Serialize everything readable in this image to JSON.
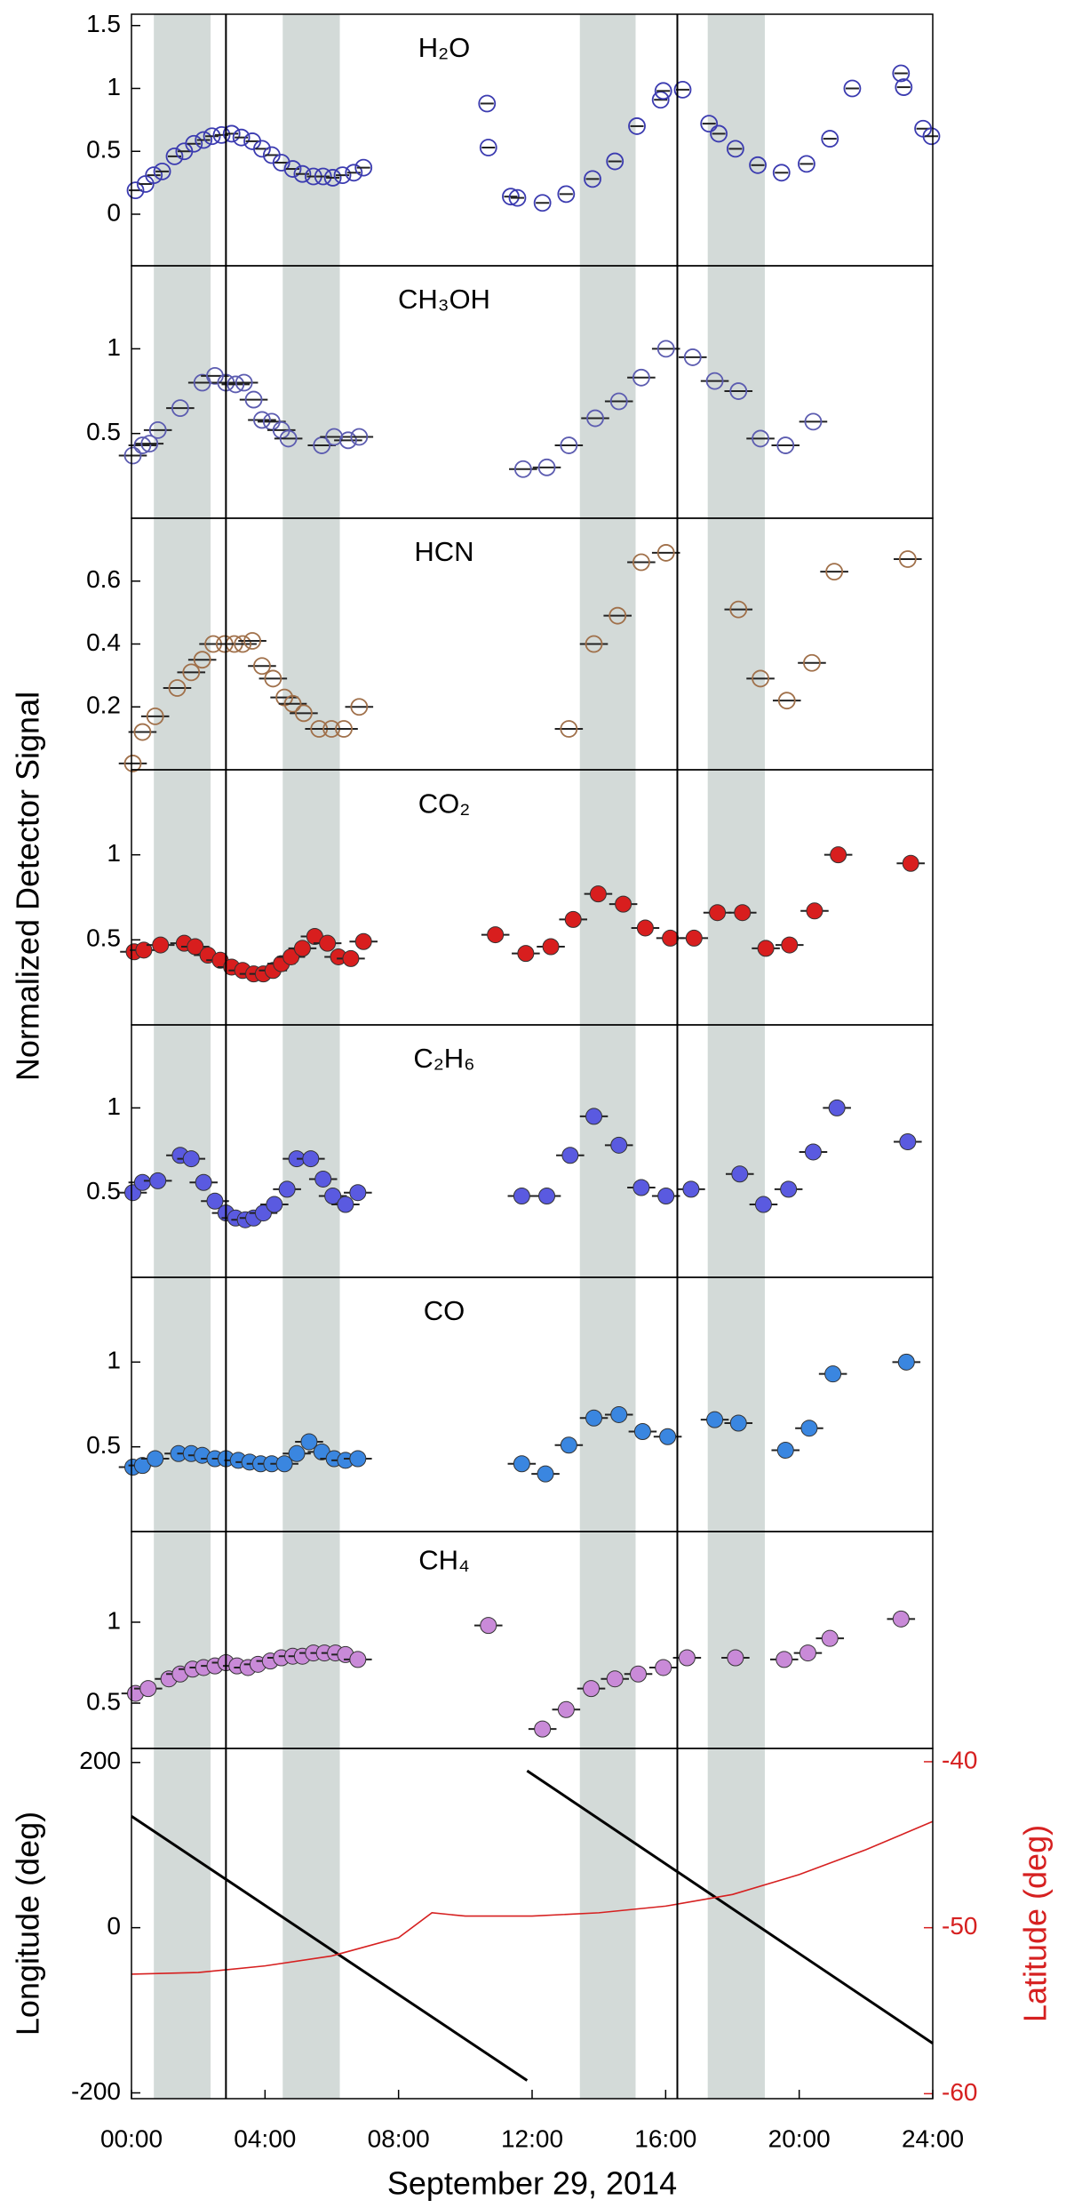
{
  "figure": {
    "ylabel": "Normalized Detector Signal",
    "xlim": [
      0,
      24
    ],
    "shaded": [
      [
        0.67,
        2.37
      ],
      [
        4.53,
        6.24
      ],
      [
        13.43,
        15.1
      ],
      [
        17.26,
        18.97
      ]
    ],
    "vlines": [
      2.83,
      16.35
    ]
  },
  "chart_data": [
    {
      "type": "scatter",
      "annotation": "H₂O",
      "color": "#3b3bb0",
      "marker": "open",
      "xerr": 0.2,
      "ylim": [
        -0.41,
        1.59
      ],
      "yticks": [
        0,
        0.5,
        1,
        1.5
      ],
      "x": [
        0.12,
        0.42,
        0.67,
        0.92,
        1.29,
        1.58,
        1.87,
        2.16,
        2.41,
        2.7,
        3.0,
        3.29,
        3.62,
        3.91,
        4.2,
        4.49,
        4.83,
        5.12,
        5.45,
        5.74,
        6.03,
        6.32,
        6.66,
        6.95,
        10.65,
        10.69,
        11.36,
        11.56,
        12.31,
        13.02,
        13.81,
        14.48,
        15.14,
        15.85,
        15.93,
        16.51,
        17.3,
        17.59,
        18.09,
        18.76,
        19.47,
        20.22,
        20.92,
        21.59,
        23.05,
        23.13,
        23.71,
        23.96
      ],
      "values": [
        0.19,
        0.24,
        0.31,
        0.34,
        0.46,
        0.5,
        0.56,
        0.59,
        0.62,
        0.63,
        0.64,
        0.61,
        0.58,
        0.52,
        0.47,
        0.41,
        0.36,
        0.32,
        0.3,
        0.3,
        0.29,
        0.31,
        0.33,
        0.37,
        0.88,
        0.53,
        0.14,
        0.13,
        0.09,
        0.16,
        0.28,
        0.42,
        0.7,
        0.91,
        0.98,
        0.99,
        0.72,
        0.64,
        0.52,
        0.39,
        0.33,
        0.4,
        0.6,
        1.0,
        1.12,
        1.01,
        0.68,
        0.62
      ]
    },
    {
      "type": "scatter",
      "annotation": "CH₃OH",
      "color": "#5c5cb0",
      "marker": "open",
      "xerr": 0.42,
      "ylim": [
        0,
        1.49
      ],
      "yticks": [
        0.5,
        1
      ],
      "x": [
        0.04,
        0.33,
        0.54,
        0.79,
        1.46,
        2.12,
        2.5,
        2.83,
        3.12,
        3.37,
        3.66,
        3.91,
        4.2,
        4.49,
        4.7,
        5.7,
        6.07,
        6.49,
        6.82,
        11.73,
        12.44,
        13.1,
        13.89,
        14.6,
        15.27,
        16.01,
        16.81,
        17.47,
        18.18,
        18.84,
        19.59,
        20.42
      ],
      "values": [
        0.37,
        0.43,
        0.44,
        0.52,
        0.65,
        0.8,
        0.84,
        0.8,
        0.79,
        0.8,
        0.7,
        0.58,
        0.57,
        0.52,
        0.47,
        0.43,
        0.48,
        0.46,
        0.48,
        0.29,
        0.3,
        0.43,
        0.59,
        0.69,
        0.83,
        1.0,
        0.95,
        0.81,
        0.75,
        0.47,
        0.43,
        0.57
      ]
    },
    {
      "type": "scatter",
      "annotation": "HCN",
      "color": "#a0704a",
      "marker": "open",
      "xerr": 0.42,
      "ylim": [
        0,
        0.8
      ],
      "yticks": [
        0.2,
        0.4,
        0.6
      ],
      "x": [
        0.04,
        0.33,
        0.71,
        1.37,
        1.79,
        2.12,
        2.45,
        2.79,
        3.08,
        3.33,
        3.62,
        3.91,
        4.24,
        4.58,
        4.83,
        5.16,
        5.62,
        5.99,
        6.36,
        6.82,
        13.1,
        13.85,
        14.56,
        15.27,
        16.01,
        18.18,
        18.84,
        19.63,
        20.38,
        21.05,
        23.25
      ],
      "values": [
        0.02,
        0.12,
        0.17,
        0.26,
        0.31,
        0.35,
        0.4,
        0.4,
        0.4,
        0.4,
        0.41,
        0.33,
        0.29,
        0.23,
        0.21,
        0.18,
        0.13,
        0.13,
        0.13,
        0.2,
        0.13,
        0.4,
        0.49,
        0.66,
        0.69,
        0.51,
        0.29,
        0.22,
        0.34,
        0.63,
        0.67
      ]
    },
    {
      "type": "scatter",
      "annotation": "CO₂",
      "color": "#d81e1e",
      "marker": "filled",
      "xerr": 0.42,
      "ylim": [
        0,
        1.5
      ],
      "yticks": [
        0.5,
        1
      ],
      "x": [
        0.08,
        0.37,
        0.87,
        1.58,
        1.91,
        2.29,
        2.66,
        3.0,
        3.33,
        3.66,
        3.95,
        4.24,
        4.49,
        4.78,
        5.12,
        5.49,
        5.87,
        6.2,
        6.57,
        6.95,
        10.9,
        11.81,
        12.56,
        13.23,
        13.98,
        14.73,
        15.39,
        16.14,
        16.85,
        17.55,
        18.3,
        19.0,
        19.71,
        20.46,
        21.17,
        23.34
      ],
      "values": [
        0.43,
        0.44,
        0.47,
        0.48,
        0.46,
        0.41,
        0.38,
        0.34,
        0.32,
        0.3,
        0.3,
        0.32,
        0.36,
        0.4,
        0.45,
        0.52,
        0.48,
        0.4,
        0.39,
        0.49,
        0.53,
        0.42,
        0.46,
        0.62,
        0.77,
        0.71,
        0.57,
        0.51,
        0.51,
        0.66,
        0.66,
        0.45,
        0.47,
        0.67,
        1.0,
        0.95
      ]
    },
    {
      "type": "scatter",
      "annotation": "C₂H₆",
      "color": "#5a5ae0",
      "marker": "filled",
      "xerr": 0.42,
      "ylim": [
        0,
        1.49
      ],
      "yticks": [
        0.5,
        1
      ],
      "x": [
        0.04,
        0.33,
        0.79,
        1.46,
        1.79,
        2.16,
        2.5,
        2.83,
        3.12,
        3.41,
        3.66,
        3.95,
        4.28,
        4.66,
        4.95,
        5.37,
        5.74,
        6.03,
        6.41,
        6.78,
        11.69,
        12.44,
        13.14,
        13.85,
        14.6,
        15.27,
        16.01,
        16.76,
        18.22,
        18.93,
        19.68,
        20.42,
        21.13,
        23.25
      ],
      "values": [
        0.5,
        0.56,
        0.57,
        0.72,
        0.7,
        0.56,
        0.45,
        0.38,
        0.35,
        0.34,
        0.35,
        0.38,
        0.43,
        0.52,
        0.7,
        0.7,
        0.58,
        0.48,
        0.43,
        0.5,
        0.48,
        0.48,
        0.72,
        0.95,
        0.78,
        0.53,
        0.48,
        0.52,
        0.61,
        0.43,
        0.52,
        0.74,
        1.0,
        0.8
      ]
    },
    {
      "type": "scatter",
      "annotation": "CO",
      "color": "#3a86e0",
      "marker": "filled",
      "xerr": 0.42,
      "ylim": [
        0,
        1.5
      ],
      "yticks": [
        0.5,
        1
      ],
      "x": [
        0.04,
        0.33,
        0.71,
        1.41,
        1.79,
        2.12,
        2.5,
        2.83,
        3.2,
        3.54,
        3.87,
        4.2,
        4.58,
        4.95,
        5.32,
        5.7,
        6.07,
        6.41,
        6.78,
        11.69,
        12.4,
        13.1,
        13.85,
        14.6,
        15.31,
        16.06,
        17.47,
        18.18,
        19.59,
        20.3,
        21.01,
        23.21
      ],
      "values": [
        0.38,
        0.39,
        0.43,
        0.46,
        0.46,
        0.45,
        0.43,
        0.43,
        0.42,
        0.41,
        0.4,
        0.4,
        0.4,
        0.46,
        0.53,
        0.47,
        0.43,
        0.42,
        0.43,
        0.4,
        0.34,
        0.51,
        0.67,
        0.69,
        0.59,
        0.56,
        0.66,
        0.64,
        0.48,
        0.61,
        0.93,
        1.0
      ]
    },
    {
      "type": "scatter",
      "annotation": "CH₄",
      "color": "#c98ad8",
      "marker": "filled",
      "xerr": 0.42,
      "ylim": [
        0.22,
        1.56
      ],
      "yticks": [
        0.5,
        1
      ],
      "x": [
        0.12,
        0.5,
        1.12,
        1.46,
        1.83,
        2.16,
        2.5,
        2.83,
        3.16,
        3.49,
        3.79,
        4.16,
        4.49,
        4.83,
        5.12,
        5.45,
        5.78,
        6.11,
        6.41,
        6.78,
        10.69,
        12.31,
        13.02,
        13.77,
        14.48,
        15.18,
        15.93,
        16.64,
        18.09,
        19.55,
        20.26,
        20.92,
        23.05
      ],
      "values": [
        0.56,
        0.59,
        0.65,
        0.68,
        0.71,
        0.72,
        0.73,
        0.75,
        0.73,
        0.72,
        0.74,
        0.76,
        0.78,
        0.79,
        0.79,
        0.81,
        0.81,
        0.81,
        0.8,
        0.77,
        0.98,
        0.34,
        0.46,
        0.59,
        0.65,
        0.68,
        0.72,
        0.78,
        0.78,
        0.77,
        0.81,
        0.9,
        1.02
      ]
    },
    {
      "type": "line",
      "ylabel": "Longitude (deg)",
      "y2label": "Latitude (deg)",
      "y2color": "#d62020",
      "xlabel": "September 29, 2014",
      "ylim": [
        -207,
        217
      ],
      "yticks": [
        -200,
        0,
        200
      ],
      "y2lim": [
        -60.3,
        -39.2
      ],
      "y2ticks": [
        -60,
        -50,
        -40
      ],
      "xticks": [
        {
          "value": 0,
          "label": "00:00"
        },
        {
          "value": 4,
          "label": "04:00"
        },
        {
          "value": 8,
          "label": "08:00"
        },
        {
          "value": 12,
          "label": "12:00"
        },
        {
          "value": 16,
          "label": "16:00"
        },
        {
          "value": 20,
          "label": "20:00"
        },
        {
          "value": 24,
          "label": "24:00"
        }
      ],
      "series": [
        {
          "color": "#000000",
          "x": [
            0,
            11.85,
            11.85,
            11.85,
            24
          ],
          "values": [
            135,
            -185,
            null,
            190,
            -140
          ]
        },
        {
          "color": "#d62020",
          "axis": "y2",
          "x": [
            0,
            2,
            4,
            6,
            8,
            9,
            10,
            12,
            14,
            16,
            18,
            20,
            22,
            24
          ],
          "values": [
            -52.8,
            -52.7,
            -52.3,
            -51.7,
            -50.6,
            -49.1,
            -49.3,
            -49.3,
            -49.1,
            -48.7,
            -48.0,
            -46.8,
            -45.3,
            -43.6
          ]
        }
      ]
    }
  ]
}
